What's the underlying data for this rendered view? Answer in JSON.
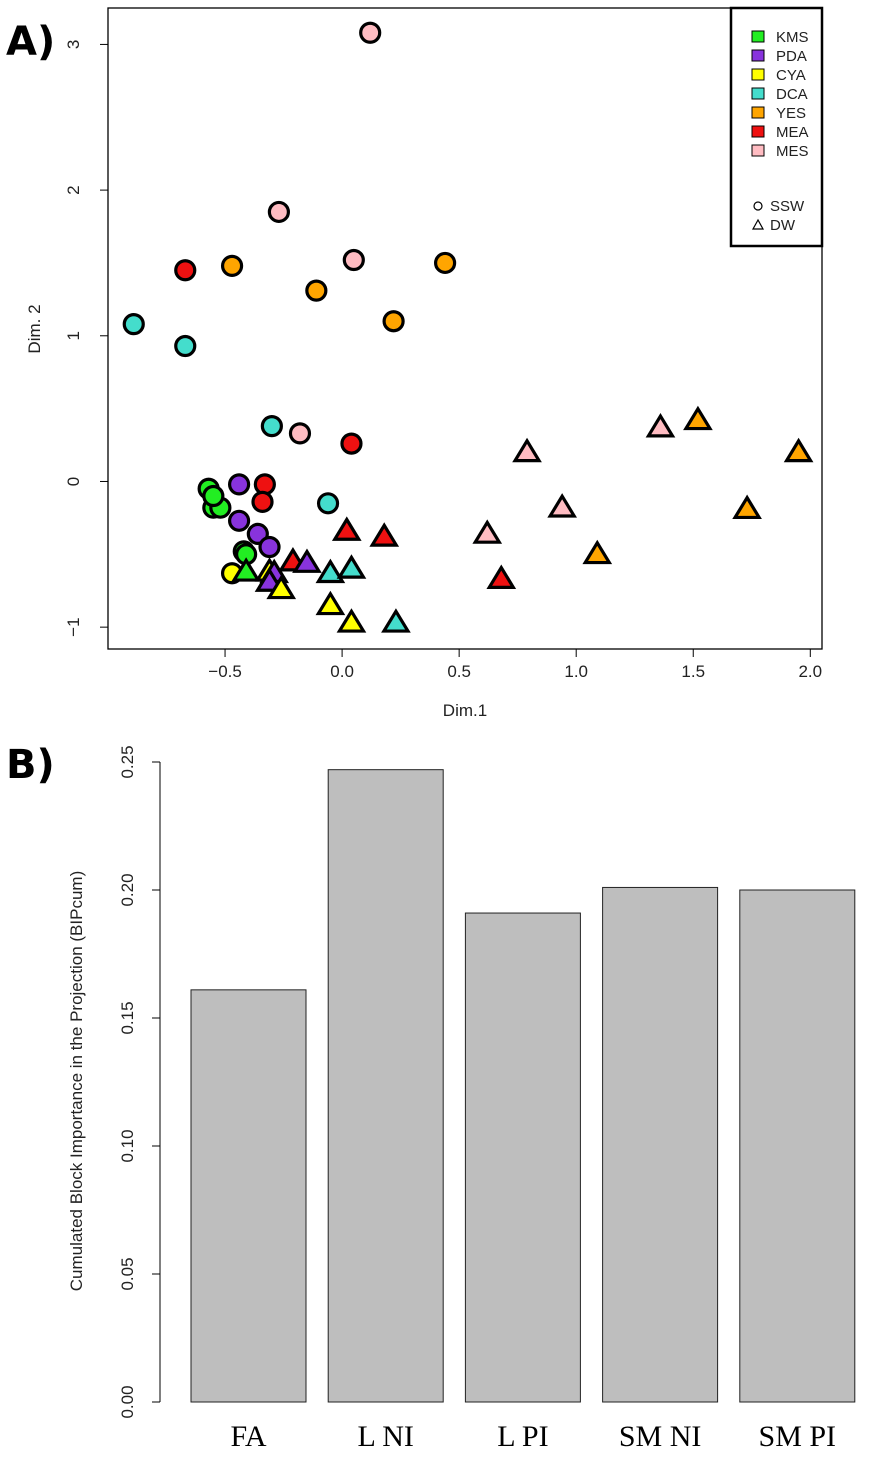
{
  "panels": {
    "a_label": "A)",
    "b_label": "B)"
  },
  "chart_data": [
    {
      "type": "scatter",
      "xlabel": "Dim.1",
      "ylabel": "Dim. 2",
      "xlim": [
        -1.0,
        2.05
      ],
      "ylim": [
        -1.15,
        3.25
      ],
      "xticks": [
        -0.5,
        0.0,
        0.5,
        1.0,
        1.5,
        2.0
      ],
      "xtick_labels": [
        "−0.5",
        "0.0",
        "0.5",
        "1.0",
        "1.5",
        "2.0"
      ],
      "yticks": [
        -1,
        0,
        1,
        2,
        3
      ],
      "ytick_labels": [
        "−1",
        "0",
        "1",
        "2",
        "3"
      ],
      "legend_position": "top-right",
      "color_legend": [
        {
          "name": "KMS",
          "color": "#22ee22"
        },
        {
          "name": "PDA",
          "color": "#8833dd"
        },
        {
          "name": "CYA",
          "color": "#ffff00"
        },
        {
          "name": "DCA",
          "color": "#44ddcc"
        },
        {
          "name": "YES",
          "color": "#ffa500"
        },
        {
          "name": "MEA",
          "color": "#ee1111"
        },
        {
          "name": "MES",
          "color": "#ffbcc2"
        }
      ],
      "shape_legend": [
        {
          "name": "SSW",
          "shape": "circle"
        },
        {
          "name": "DW",
          "shape": "triangle"
        }
      ],
      "points": [
        {
          "x": -0.89,
          "y": 1.08,
          "group": "DCA",
          "shape": "circle"
        },
        {
          "x": -0.67,
          "y": 0.93,
          "group": "DCA",
          "shape": "circle"
        },
        {
          "x": -0.67,
          "y": 1.45,
          "group": "MEA",
          "shape": "circle"
        },
        {
          "x": -0.47,
          "y": 1.48,
          "group": "YES",
          "shape": "circle"
        },
        {
          "x": -0.27,
          "y": 1.85,
          "group": "MES",
          "shape": "circle"
        },
        {
          "x": -0.11,
          "y": 1.31,
          "group": "YES",
          "shape": "circle"
        },
        {
          "x": 0.05,
          "y": 1.52,
          "group": "MES",
          "shape": "circle"
        },
        {
          "x": 0.12,
          "y": 3.08,
          "group": "MES",
          "shape": "circle"
        },
        {
          "x": 0.22,
          "y": 1.1,
          "group": "YES",
          "shape": "circle"
        },
        {
          "x": 0.44,
          "y": 1.5,
          "group": "YES",
          "shape": "circle"
        },
        {
          "x": -0.3,
          "y": 0.38,
          "group": "DCA",
          "shape": "circle"
        },
        {
          "x": -0.18,
          "y": 0.33,
          "group": "MES",
          "shape": "circle"
        },
        {
          "x": 0.04,
          "y": 0.26,
          "group": "MEA",
          "shape": "circle"
        },
        {
          "x": -0.57,
          "y": -0.05,
          "group": "KMS",
          "shape": "circle"
        },
        {
          "x": -0.55,
          "y": -0.18,
          "group": "KMS",
          "shape": "circle"
        },
        {
          "x": -0.52,
          "y": -0.18,
          "group": "KMS",
          "shape": "circle"
        },
        {
          "x": -0.55,
          "y": -0.1,
          "group": "KMS",
          "shape": "circle"
        },
        {
          "x": -0.44,
          "y": -0.02,
          "group": "PDA",
          "shape": "circle"
        },
        {
          "x": -0.44,
          "y": -0.27,
          "group": "PDA",
          "shape": "circle"
        },
        {
          "x": -0.33,
          "y": -0.02,
          "group": "MEA",
          "shape": "circle"
        },
        {
          "x": -0.34,
          "y": -0.14,
          "group": "MEA",
          "shape": "circle"
        },
        {
          "x": -0.06,
          "y": -0.15,
          "group": "DCA",
          "shape": "circle"
        },
        {
          "x": -0.36,
          "y": -0.36,
          "group": "PDA",
          "shape": "circle"
        },
        {
          "x": -0.31,
          "y": -0.45,
          "group": "PDA",
          "shape": "circle"
        },
        {
          "x": -0.42,
          "y": -0.48,
          "group": "KMS",
          "shape": "circle"
        },
        {
          "x": -0.41,
          "y": -0.5,
          "group": "KMS",
          "shape": "circle"
        },
        {
          "x": -0.47,
          "y": -0.63,
          "group": "CYA",
          "shape": "circle"
        },
        {
          "x": -0.41,
          "y": -0.62,
          "group": "KMS",
          "shape": "triangle"
        },
        {
          "x": -0.31,
          "y": -0.62,
          "group": "CYA",
          "shape": "triangle"
        },
        {
          "x": -0.29,
          "y": -0.63,
          "group": "PDA",
          "shape": "triangle"
        },
        {
          "x": -0.31,
          "y": -0.69,
          "group": "PDA",
          "shape": "triangle"
        },
        {
          "x": -0.26,
          "y": -0.74,
          "group": "CYA",
          "shape": "triangle"
        },
        {
          "x": -0.21,
          "y": -0.55,
          "group": "MEA",
          "shape": "triangle"
        },
        {
          "x": -0.15,
          "y": -0.56,
          "group": "PDA",
          "shape": "triangle"
        },
        {
          "x": -0.05,
          "y": -0.63,
          "group": "DCA",
          "shape": "triangle"
        },
        {
          "x": 0.04,
          "y": -0.6,
          "group": "DCA",
          "shape": "triangle"
        },
        {
          "x": 0.02,
          "y": -0.34,
          "group": "MEA",
          "shape": "triangle"
        },
        {
          "x": 0.18,
          "y": -0.38,
          "group": "MEA",
          "shape": "triangle"
        },
        {
          "x": -0.05,
          "y": -0.85,
          "group": "CYA",
          "shape": "triangle"
        },
        {
          "x": 0.04,
          "y": -0.97,
          "group": "CYA",
          "shape": "triangle"
        },
        {
          "x": 0.23,
          "y": -0.97,
          "group": "DCA",
          "shape": "triangle"
        },
        {
          "x": 0.62,
          "y": -0.36,
          "group": "MES",
          "shape": "triangle"
        },
        {
          "x": 0.68,
          "y": -0.67,
          "group": "MEA",
          "shape": "triangle"
        },
        {
          "x": 0.79,
          "y": 0.2,
          "group": "MES",
          "shape": "triangle"
        },
        {
          "x": 0.94,
          "y": -0.18,
          "group": "MES",
          "shape": "triangle"
        },
        {
          "x": 1.09,
          "y": -0.5,
          "group": "YES",
          "shape": "triangle"
        },
        {
          "x": 1.36,
          "y": 0.37,
          "group": "MES",
          "shape": "triangle"
        },
        {
          "x": 1.52,
          "y": 0.42,
          "group": "YES",
          "shape": "triangle"
        },
        {
          "x": 1.73,
          "y": -0.19,
          "group": "YES",
          "shape": "triangle"
        },
        {
          "x": 1.95,
          "y": 0.2,
          "group": "YES",
          "shape": "triangle"
        }
      ]
    },
    {
      "type": "bar",
      "categories": [
        "FA",
        "L NI",
        "L PI",
        "SM NI",
        "SM PI"
      ],
      "values": [
        0.161,
        0.247,
        0.191,
        0.201,
        0.2
      ],
      "ylabel": "Cumulated Block Importance in the Projection (BIPcum)",
      "ylim": [
        0,
        0.25
      ],
      "yticks": [
        0.0,
        0.05,
        0.1,
        0.15,
        0.2,
        0.25
      ],
      "ytick_labels": [
        "0.00",
        "0.05",
        "0.10",
        "0.15",
        "0.20",
        "0.25"
      ],
      "bar_color": "#bebebe",
      "grid": false
    }
  ]
}
